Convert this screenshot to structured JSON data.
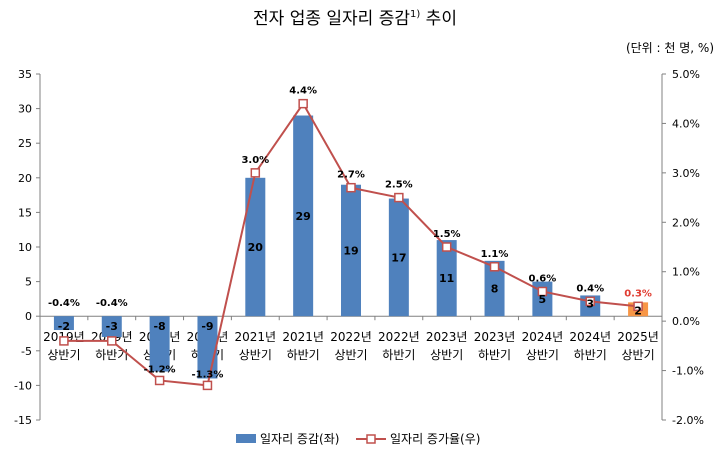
{
  "chart_data": {
    "type": "bar",
    "title_main": "전자 업종 일자리 증감",
    "title_sup": "1)",
    "title_tail": " 추이",
    "unit_note": "(단위 : 천 명, %)",
    "categories": [
      [
        "2019년",
        "상반기"
      ],
      [
        "2019년",
        "하반기"
      ],
      [
        "2020년",
        "상반기"
      ],
      [
        "2020년",
        "하반기"
      ],
      [
        "2021년",
        "상반기"
      ],
      [
        "2021년",
        "하반기"
      ],
      [
        "2022년",
        "상반기"
      ],
      [
        "2022년",
        "하반기"
      ],
      [
        "2023년",
        "상반기"
      ],
      [
        "2023년",
        "하반기"
      ],
      [
        "2024년",
        "상반기"
      ],
      [
        "2024년",
        "하반기"
      ],
      [
        "2025년",
        "상반기"
      ]
    ],
    "series": [
      {
        "name": "일자리 증감(좌)",
        "kind": "bar",
        "axis": "left",
        "values": [
          -2,
          -3,
          -8,
          -9,
          20,
          29,
          19,
          17,
          11,
          8,
          5,
          3,
          2
        ],
        "labels": [
          "-2",
          "-3",
          "-8",
          "-9",
          "20",
          "29",
          "19",
          "17",
          "11",
          "8",
          "5",
          "3",
          "2"
        ],
        "color": "#4f81bd",
        "highlight_last_color": "#f79646"
      },
      {
        "name": "일자리 증가율(우)",
        "kind": "line",
        "axis": "right",
        "values": [
          -0.4,
          -0.4,
          -1.2,
          -1.3,
          3.0,
          4.4,
          2.7,
          2.5,
          1.5,
          1.1,
          0.6,
          0.4,
          0.3
        ],
        "labels": [
          "-0.4%",
          "-0.4%",
          "-1.2%",
          "-1.3%",
          "3.0%",
          "4.4%",
          "2.7%",
          "2.5%",
          "1.5%",
          "1.1%",
          "0.6%",
          "0.4%",
          "0.3%"
        ],
        "color": "#c0504d",
        "highlight_last_label_color": "#e03c31"
      }
    ],
    "y_left": {
      "min": -15,
      "max": 35,
      "step": 5,
      "ticks": [
        "-15",
        "-10",
        "-5",
        "0",
        "5",
        "10",
        "15",
        "20",
        "25",
        "30",
        "35"
      ]
    },
    "y_right": {
      "min": -2.0,
      "max": 5.0,
      "step": 1.0,
      "ticks": [
        "-2.0%",
        "-1.0%",
        "0.0%",
        "1.0%",
        "2.0%",
        "3.0%",
        "4.0%",
        "5.0%"
      ]
    },
    "legend_position": "bottom",
    "grid": false
  }
}
